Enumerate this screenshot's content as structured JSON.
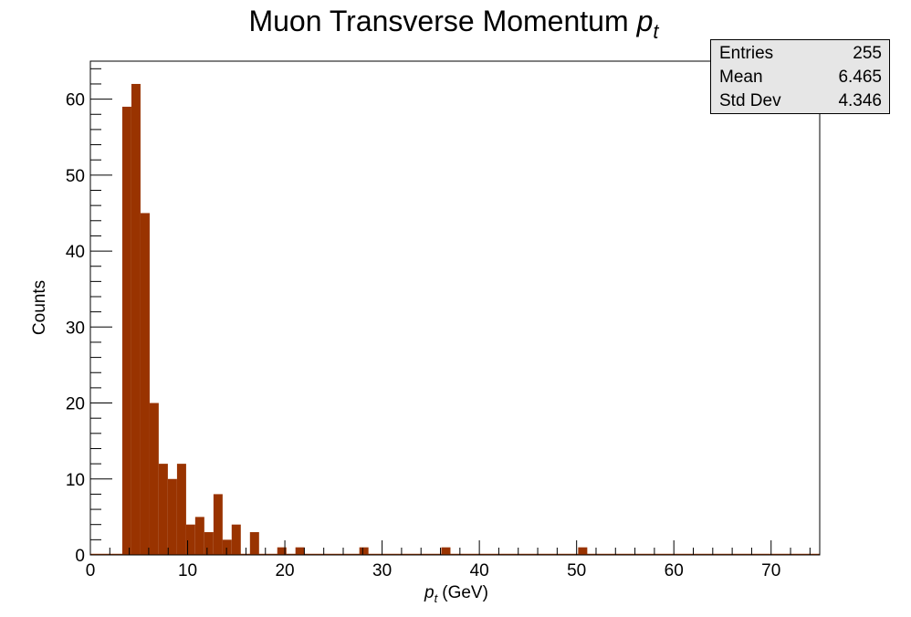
{
  "chart_data": {
    "type": "bar",
    "title": "Muon Transverse Momentum",
    "title_symbol": "p",
    "title_subscript": "t",
    "xlabel_symbol": "p",
    "xlabel_subscript": "t",
    "xlabel_unit": "(GeV)",
    "ylabel": "Counts",
    "xlim": [
      0,
      75
    ],
    "ylim": [
      0,
      65
    ],
    "bin_width": 0.9375,
    "x_ticks": [
      0,
      10,
      20,
      30,
      40,
      50,
      60,
      70
    ],
    "y_ticks": [
      0,
      10,
      20,
      30,
      40,
      50,
      60
    ],
    "bar_color": "#993300",
    "grid": false,
    "bins": [
      {
        "x": 3.28,
        "count": 59
      },
      {
        "x": 4.22,
        "count": 62
      },
      {
        "x": 5.16,
        "count": 45
      },
      {
        "x": 6.09,
        "count": 20
      },
      {
        "x": 7.03,
        "count": 12
      },
      {
        "x": 7.97,
        "count": 10
      },
      {
        "x": 8.91,
        "count": 12
      },
      {
        "x": 9.84,
        "count": 4
      },
      {
        "x": 10.78,
        "count": 5
      },
      {
        "x": 11.72,
        "count": 3
      },
      {
        "x": 12.66,
        "count": 8
      },
      {
        "x": 13.59,
        "count": 2
      },
      {
        "x": 14.53,
        "count": 4
      },
      {
        "x": 16.41,
        "count": 3
      },
      {
        "x": 19.22,
        "count": 1
      },
      {
        "x": 21.09,
        "count": 1
      },
      {
        "x": 27.66,
        "count": 1
      },
      {
        "x": 36.09,
        "count": 1
      },
      {
        "x": 50.16,
        "count": 1
      }
    ],
    "stats": {
      "entries_label": "Entries",
      "entries": "255",
      "mean_label": "Mean",
      "mean": "6.465",
      "stddev_label": "Std Dev",
      "stddev": "4.346"
    }
  }
}
